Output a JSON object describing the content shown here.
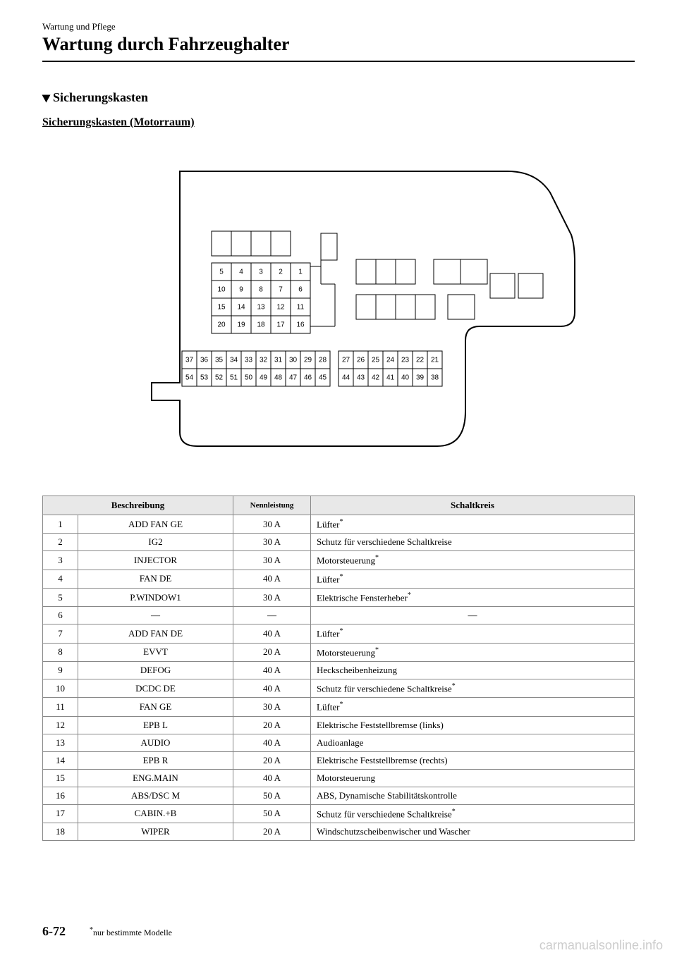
{
  "header": {
    "small": "Wartung und Pflege",
    "large": "Wartung durch Fahrzeughalter"
  },
  "section_title": "Sicherungskasten",
  "subsection_title": "Sicherungskasten (Motorraum)",
  "diagram": {
    "outline_color": "#000000",
    "stroke_width": 2,
    "grid_top": {
      "rows": [
        [
          "5",
          "4",
          "3",
          "2",
          "1"
        ],
        [
          "10",
          "9",
          "8",
          "7",
          "6"
        ],
        [
          "15",
          "14",
          "13",
          "12",
          "11"
        ],
        [
          "20",
          "19",
          "18",
          "17",
          "16"
        ]
      ]
    },
    "row_bottom_left": [
      "37",
      "36",
      "35",
      "34",
      "33",
      "32",
      "31",
      "30",
      "29",
      "28"
    ],
    "row_bottom_left2": [
      "54",
      "53",
      "52",
      "51",
      "50",
      "49",
      "48",
      "47",
      "46",
      "45"
    ],
    "row_bottom_right": [
      "27",
      "26",
      "25",
      "24",
      "23",
      "22",
      "21"
    ],
    "row_bottom_right2": [
      "44",
      "43",
      "42",
      "41",
      "40",
      "39",
      "38"
    ]
  },
  "table": {
    "headers": [
      "Beschreibung",
      "Nennleistung",
      "Schaltkreis"
    ],
    "rows": [
      {
        "n": "1",
        "desc": "ADD FAN GE",
        "rating": "30 A",
        "circuit": "Lüfter",
        "star": true
      },
      {
        "n": "2",
        "desc": "IG2",
        "rating": "30 A",
        "circuit": "Schutz für verschiedene Schaltkreise",
        "star": false
      },
      {
        "n": "3",
        "desc": "INJECTOR",
        "rating": "30 A",
        "circuit": "Motorsteuerung",
        "star": true
      },
      {
        "n": "4",
        "desc": "FAN DE",
        "rating": "40 A",
        "circuit": "Lüfter",
        "star": true
      },
      {
        "n": "5",
        "desc": "P.WINDOW1",
        "rating": "30 A",
        "circuit": "Elektrische Fensterheber",
        "star": true
      },
      {
        "n": "6",
        "desc": "―",
        "rating": "―",
        "circuit": "―",
        "star": false,
        "center_circuit": true
      },
      {
        "n": "7",
        "desc": "ADD FAN DE",
        "rating": "40 A",
        "circuit": "Lüfter",
        "star": true
      },
      {
        "n": "8",
        "desc": "EVVT",
        "rating": "20 A",
        "circuit": "Motorsteuerung",
        "star": true
      },
      {
        "n": "9",
        "desc": "DEFOG",
        "rating": "40 A",
        "circuit": "Heckscheibenheizung",
        "star": false
      },
      {
        "n": "10",
        "desc": "DCDC DE",
        "rating": "40 A",
        "circuit": "Schutz für verschiedene Schaltkreise",
        "star": true
      },
      {
        "n": "11",
        "desc": "FAN GE",
        "rating": "30 A",
        "circuit": "Lüfter",
        "star": true
      },
      {
        "n": "12",
        "desc": "EPB L",
        "rating": "20 A",
        "circuit": "Elektrische Feststellbremse (links)",
        "star": false
      },
      {
        "n": "13",
        "desc": "AUDIO",
        "rating": "40 A",
        "circuit": "Audioanlage",
        "star": false
      },
      {
        "n": "14",
        "desc": "EPB R",
        "rating": "20 A",
        "circuit": "Elektrische Feststellbremse (rechts)",
        "star": false
      },
      {
        "n": "15",
        "desc": "ENG.MAIN",
        "rating": "40 A",
        "circuit": "Motorsteuerung",
        "star": false
      },
      {
        "n": "16",
        "desc": "ABS/DSC M",
        "rating": "50 A",
        "circuit": "ABS, Dynamische Stabilitätskontrolle",
        "star": false
      },
      {
        "n": "17",
        "desc": "CABIN.+B",
        "rating": "50 A",
        "circuit": "Schutz für verschiedene Schaltkreise",
        "star": true
      },
      {
        "n": "18",
        "desc": "WIPER",
        "rating": "20 A",
        "circuit": "Windschutzscheibenwischer und Wascher",
        "star": false
      }
    ]
  },
  "footer": {
    "page": "6-72",
    "footnote_star": "*",
    "footnote_text": "nur bestimmte Modelle"
  },
  "watermark": "carmanualsonline.info"
}
